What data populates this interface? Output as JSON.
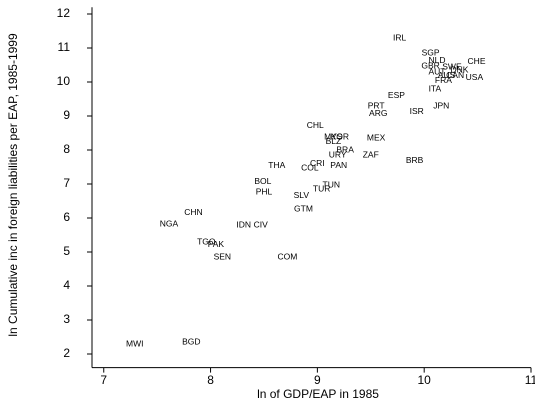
{
  "chart_data": {
    "type": "scatter",
    "x_label": "ln of GDP/EAP in 1985",
    "y_label": "ln Cumulative inc in foreign liabilities per EAP, 1985-1999",
    "xlim": [
      6.89,
      11
    ],
    "ylim": [
      1.6,
      12.2
    ],
    "xticks": [
      7,
      8,
      9,
      10,
      11
    ],
    "yticks": [
      2,
      3,
      4,
      5,
      6,
      7,
      8,
      9,
      10,
      11,
      12
    ],
    "series": [
      {
        "color": "#000000",
        "labels": [
          "MWI",
          "BGD",
          "NGA",
          "CHN",
          "TGO",
          "PAK",
          "SEN",
          "IDN",
          "CIV",
          "COM",
          "BOL",
          "PHL",
          "THA",
          "SLV",
          "GTM",
          "TUR",
          "TUN",
          "COL",
          "CRI",
          "PAN",
          "URY",
          "BRA",
          "BLZ",
          "MYS",
          "KOR",
          "CHL",
          "MEX",
          "ZAF",
          "BRB",
          "PRT",
          "ARG",
          "ESP",
          "ISR",
          "JPN",
          "ITA",
          "IRL",
          "SGP",
          "NLD",
          "GBR",
          "SWE",
          "AUT",
          "DNK",
          "AUS",
          "CAN",
          "FRA",
          "CHE",
          "USA"
        ],
        "x": [
          7.29,
          7.82,
          7.61,
          7.84,
          7.96,
          8.05,
          8.11,
          8.31,
          8.47,
          8.72,
          8.49,
          8.5,
          8.62,
          8.85,
          8.87,
          9.04,
          9.13,
          8.93,
          9.0,
          9.2,
          9.19,
          9.26,
          9.15,
          9.15,
          9.21,
          8.98,
          9.55,
          9.5,
          9.91,
          9.55,
          9.57,
          9.74,
          9.93,
          10.16,
          10.1,
          9.77,
          10.06,
          10.12,
          10.06,
          10.26,
          10.12,
          10.33,
          10.21,
          10.29,
          10.18,
          10.49,
          10.47
        ],
        "values": [
          2.29,
          2.35,
          5.82,
          6.15,
          5.29,
          5.21,
          4.85,
          5.79,
          5.79,
          4.85,
          7.06,
          6.76,
          7.53,
          6.65,
          6.26,
          6.85,
          6.97,
          7.47,
          7.59,
          7.53,
          7.85,
          8.0,
          8.24,
          8.38,
          8.38,
          8.71,
          8.35,
          7.85,
          7.68,
          9.29,
          9.06,
          9.59,
          9.12,
          9.29,
          9.79,
          11.29,
          10.85,
          10.62,
          10.47,
          10.44,
          10.29,
          10.35,
          10.18,
          10.18,
          10.03,
          10.59,
          10.12
        ]
      }
    ]
  }
}
